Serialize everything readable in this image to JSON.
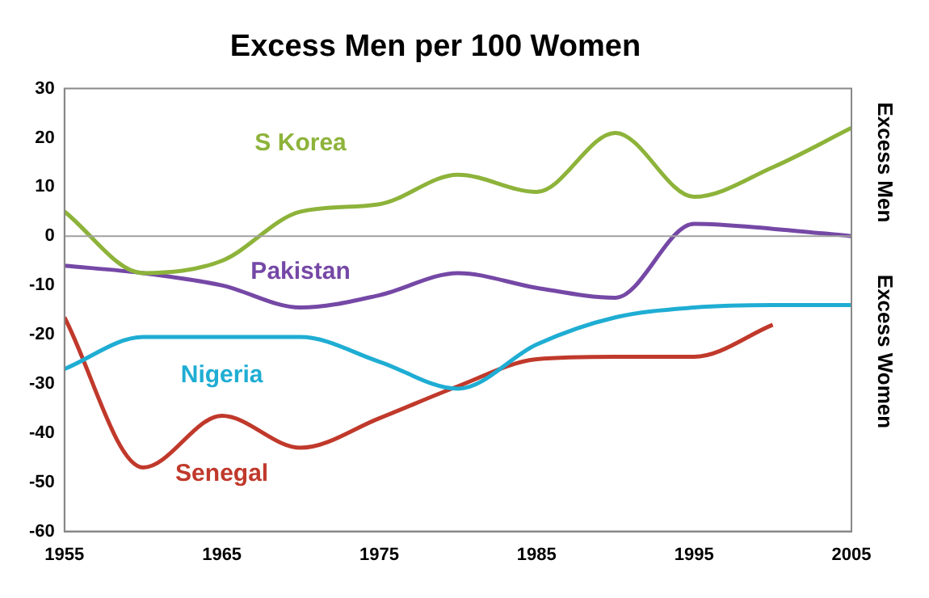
{
  "chart_data": {
    "type": "line",
    "title": "Excess Men per 100 Women",
    "annotations": [
      "Excess Men",
      "Excess Women"
    ],
    "x": [
      1955,
      1960,
      1965,
      1970,
      1975,
      1980,
      1985,
      1990,
      1995,
      2000,
      2005
    ],
    "series": [
      {
        "name": "S Korea",
        "color": "#8db33a",
        "values": [
          5,
          -7.5,
          -5,
          5,
          6.5,
          12.5,
          9,
          21,
          8,
          14,
          22
        ]
      },
      {
        "name": "Pakistan",
        "color": "#7548a6",
        "values": [
          -6,
          -7.5,
          -10,
          -14.5,
          -12,
          -7.5,
          -10.5,
          -12.5,
          2.5,
          1.5,
          0
        ]
      },
      {
        "name": "Nigeria",
        "color": "#1fadd3",
        "values": [
          -27,
          -20.5,
          -20.5,
          -20.5,
          -25.5,
          -31,
          -22,
          -16.5,
          -14.5,
          -14,
          -14
        ]
      },
      {
        "name": "Senegal",
        "color": "#c0392b",
        "values": [
          -16.5,
          -47,
          -36.5,
          -43,
          -37,
          -30.5,
          -25,
          -24.5,
          -24.5,
          -18,
          null
        ]
      }
    ],
    "xlim": [
      1955,
      2005
    ],
    "xticks": [
      1955,
      1965,
      1975,
      1985,
      1995,
      2005
    ],
    "ylim": [
      -60,
      30
    ],
    "yticks": [
      -60,
      -50,
      -40,
      -30,
      -20,
      -10,
      0,
      10,
      20,
      30
    ],
    "ref_lines": [
      {
        "axis": "y",
        "value": 0,
        "color": "#a0a0a0"
      }
    ],
    "grid": false,
    "legend": false,
    "marker": "none",
    "line_style": "solid"
  }
}
